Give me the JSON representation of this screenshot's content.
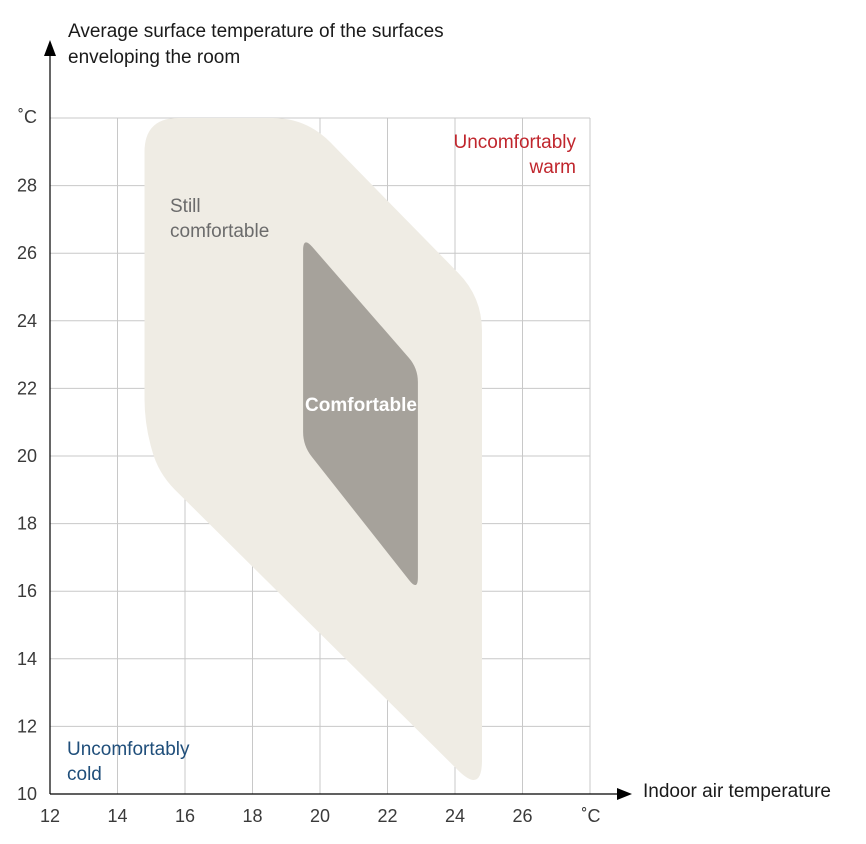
{
  "chart_data": {
    "type": "area",
    "title": "",
    "ylabel_lines": [
      "Average surface temperature of the surfaces",
      "enveloping the room"
    ],
    "xlabel": "Indoor air temperature",
    "x_unit": "˚C",
    "y_unit": "˚C",
    "xlim": [
      12,
      28
    ],
    "ylim": [
      10,
      30
    ],
    "x_ticks": [
      "12",
      "14",
      "16",
      "18",
      "20",
      "22",
      "24",
      "26"
    ],
    "y_ticks": [
      "10",
      "12",
      "14",
      "16",
      "18",
      "20",
      "22",
      "24",
      "26",
      "28"
    ],
    "grid": true,
    "regions": [
      {
        "label_lines": [
          "Still",
          "comfortable"
        ],
        "color": "#efece4",
        "label_color": "#6b6b6b",
        "polygon": [
          [
            14.8,
            30
          ],
          [
            19.6,
            30
          ],
          [
            24.8,
            24.7
          ],
          [
            24.8,
            10
          ],
          [
            15.2,
            19.5
          ],
          [
            14.8,
            21
          ]
        ]
      },
      {
        "label_lines": [
          "Comfortable"
        ],
        "color": "#a6a29b",
        "label_color": "#ffffff",
        "polygon": [
          [
            19.5,
            26.5
          ],
          [
            22.9,
            22.6
          ],
          [
            22.9,
            16
          ],
          [
            19.5,
            20.3
          ]
        ]
      }
    ],
    "annotations": [
      {
        "lines": [
          "Uncomfortably",
          "warm"
        ],
        "color": "#c0262d"
      },
      {
        "lines": [
          "Uncomfortably",
          "cold"
        ],
        "color": "#1f4e7a"
      }
    ]
  }
}
